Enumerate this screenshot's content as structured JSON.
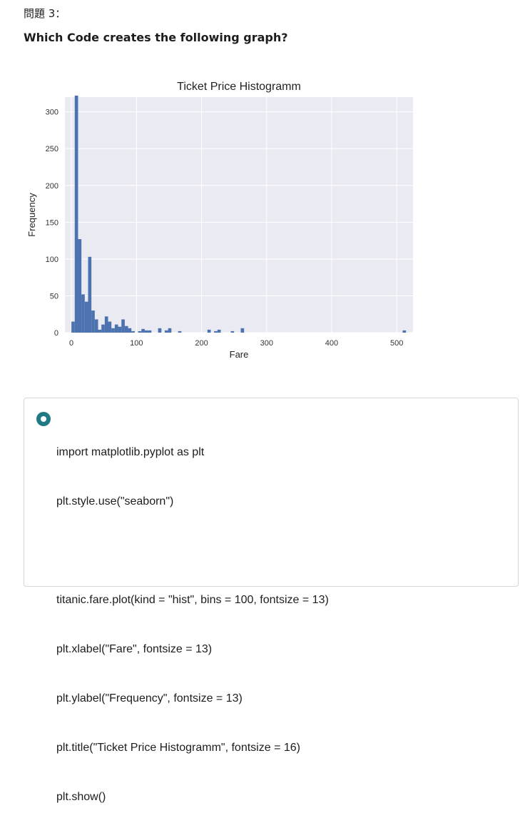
{
  "question": {
    "label": "問題 3：",
    "text": "Which Code creates the following graph?"
  },
  "chart_data": {
    "type": "histogram",
    "title": "Ticket Price Histogramm",
    "xlabel": "Fare",
    "ylabel": "Frequency",
    "xlim": [
      -10,
      525
    ],
    "ylim": [
      0,
      320
    ],
    "xticks": [
      0,
      100,
      200,
      300,
      400,
      500
    ],
    "yticks": [
      0,
      50,
      100,
      150,
      200,
      250,
      300
    ],
    "grid": true,
    "colors": {
      "bar": "#4c72b0",
      "background": "#eaeaf2",
      "grid": "#ffffff"
    },
    "bin_width": 5.12,
    "bins": [
      {
        "x": 0,
        "count": 15
      },
      {
        "x": 5.12,
        "count": 322
      },
      {
        "x": 10.25,
        "count": 127
      },
      {
        "x": 15.37,
        "count": 52
      },
      {
        "x": 20.49,
        "count": 42
      },
      {
        "x": 25.61,
        "count": 103
      },
      {
        "x": 30.74,
        "count": 30
      },
      {
        "x": 35.86,
        "count": 18
      },
      {
        "x": 40.98,
        "count": 4
      },
      {
        "x": 46.1,
        "count": 11
      },
      {
        "x": 51.23,
        "count": 22
      },
      {
        "x": 56.35,
        "count": 15
      },
      {
        "x": 61.47,
        "count": 6
      },
      {
        "x": 66.59,
        "count": 11
      },
      {
        "x": 71.72,
        "count": 8
      },
      {
        "x": 76.84,
        "count": 18
      },
      {
        "x": 81.96,
        "count": 9
      },
      {
        "x": 87.08,
        "count": 6
      },
      {
        "x": 92.21,
        "count": 2
      },
      {
        "x": 102.45,
        "count": 2
      },
      {
        "x": 107.57,
        "count": 5
      },
      {
        "x": 112.7,
        "count": 3
      },
      {
        "x": 117.82,
        "count": 3
      },
      {
        "x": 133.19,
        "count": 6
      },
      {
        "x": 143.43,
        "count": 3
      },
      {
        "x": 148.56,
        "count": 6
      },
      {
        "x": 163.92,
        "count": 2
      },
      {
        "x": 209.02,
        "count": 4
      },
      {
        "x": 219.26,
        "count": 2
      },
      {
        "x": 224.39,
        "count": 4
      },
      {
        "x": 244.88,
        "count": 2
      },
      {
        "x": 260.24,
        "count": 6
      },
      {
        "x": 509.07,
        "count": 3
      }
    ]
  },
  "answer": {
    "lines": [
      "import matplotlib.pyplot as plt",
      "plt.style.use(\"seaborn\")",
      "",
      "titanic.fare.plot(kind = \"hist\", bins = 100, fontsize = 13)",
      "plt.xlabel(\"Fare\", fontsize = 13)",
      "plt.ylabel(\"Frequency\", fontsize = 13)",
      "plt.title(\"Ticket Price Histogramm\", fontsize = 16)",
      "plt.show()"
    ]
  }
}
